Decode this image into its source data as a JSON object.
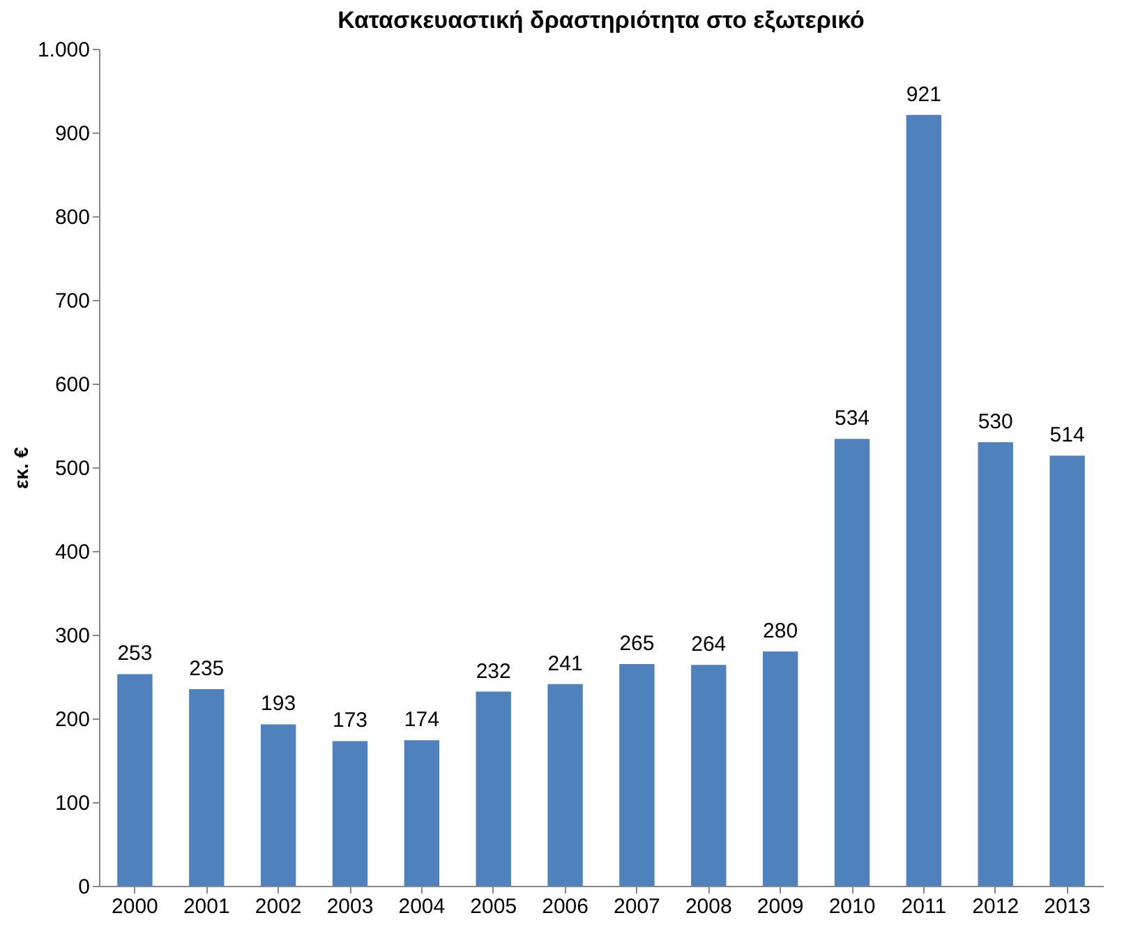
{
  "chart_data": {
    "type": "bar",
    "title": "Κατασκευαστική δραστηριότητα στο εξωτερικό",
    "ylabel": "εκ. €",
    "categories": [
      "2000",
      "2001",
      "2002",
      "2003",
      "2004",
      "2005",
      "2006",
      "2007",
      "2008",
      "2009",
      "2010",
      "2011",
      "2012",
      "2013"
    ],
    "values": [
      253,
      235,
      193,
      173,
      174,
      232,
      241,
      265,
      264,
      280,
      534,
      921,
      530,
      514
    ],
    "color": "#4f81bd",
    "ylim": [
      0,
      1000
    ],
    "yticks": [
      0,
      100,
      200,
      300,
      400,
      500,
      600,
      700,
      800,
      900,
      {
        "value": 1000,
        "label": "1.000"
      }
    ],
    "data_labels": true
  }
}
